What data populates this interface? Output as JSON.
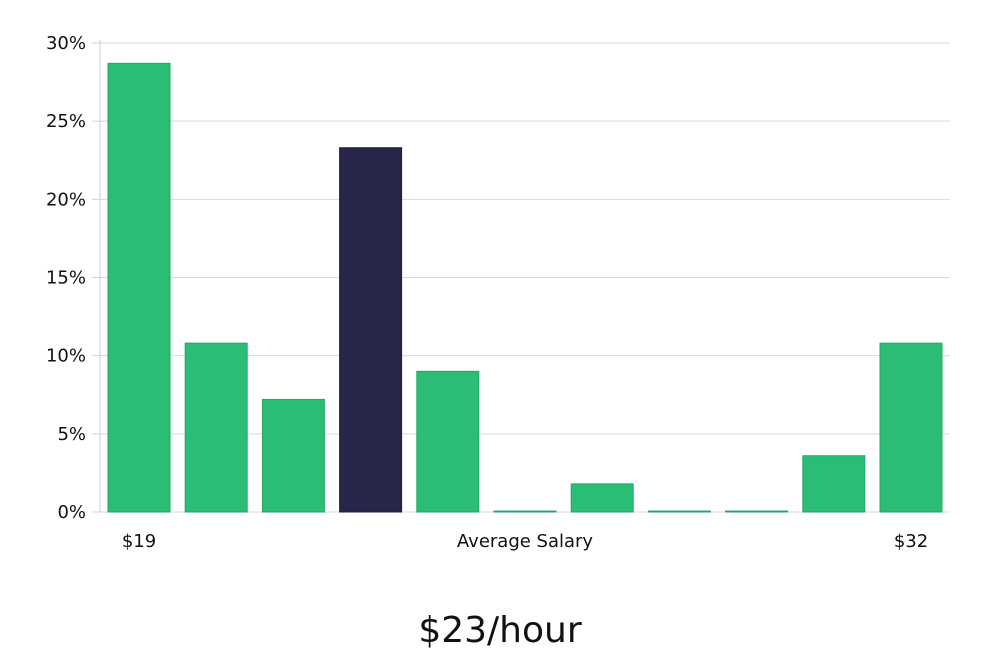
{
  "chart_data": {
    "type": "bar",
    "values": [
      28.7,
      10.8,
      7.2,
      23.3,
      9.0,
      0,
      1.8,
      0,
      0,
      3.6,
      10.8
    ],
    "highlight_index": 3,
    "x_start_label": "$19",
    "x_end_label": "$32",
    "xlabel": "Average Salary",
    "ylabel": "",
    "ylim": [
      0,
      30
    ],
    "y_ticks": [
      0,
      5,
      10,
      15,
      20,
      25,
      30
    ],
    "y_tick_suffix": "%",
    "grid": true,
    "colors": {
      "bar": "#2bbd76",
      "highlight": "#28254a",
      "grid": "#d9d9d9",
      "axis": "#cfcfcf"
    }
  },
  "caption": "$23/hour"
}
